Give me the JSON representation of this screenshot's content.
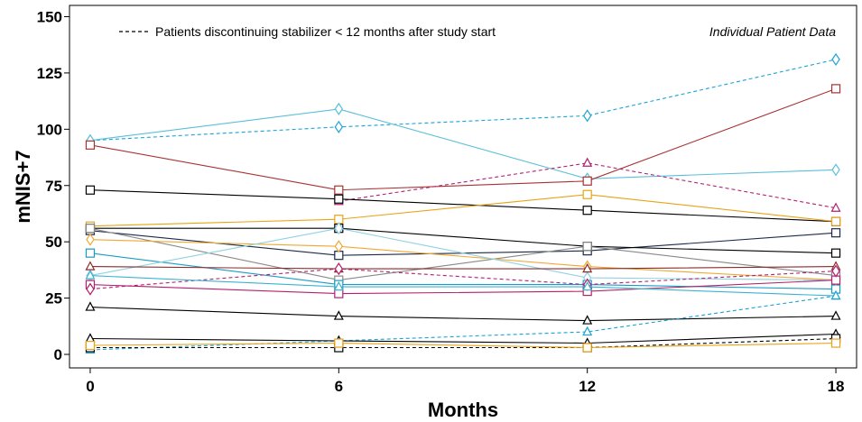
{
  "chart_data": {
    "type": "line",
    "xlabel": "Months",
    "ylabel": "mNIS+7",
    "x_ticks": [
      0,
      6,
      12,
      18
    ],
    "y_ticks": [
      0,
      25,
      50,
      75,
      100,
      125,
      150
    ],
    "xlim": [
      -0.5,
      18.5
    ],
    "ylim": [
      -6,
      155
    ],
    "grid": false,
    "legend_label": "Patients discontinuing stabilizer < 12 months after study start",
    "legend_position": "top-left",
    "annotation": "Individual Patient Data",
    "annotation_position": "top-right",
    "series": [
      {
        "color": "#1aa3d6",
        "marker": "diamond",
        "dashed": true,
        "x": [
          0,
          6,
          12,
          18
        ],
        "y": [
          95,
          101,
          106,
          131
        ]
      },
      {
        "color": "#5bbfd9",
        "marker": "diamond",
        "dashed": false,
        "x": [
          0,
          6,
          12,
          18
        ],
        "y": [
          95,
          109,
          78,
          82
        ]
      },
      {
        "color": "#a83232",
        "marker": "square",
        "dashed": false,
        "x": [
          0,
          6,
          12,
          18
        ],
        "y": [
          93,
          73,
          77,
          118
        ]
      },
      {
        "color": "#b3206e",
        "marker": "triangle",
        "dashed": true,
        "x": [
          6,
          12,
          18
        ],
        "y": [
          68,
          85,
          65
        ]
      },
      {
        "color": "#000000",
        "marker": "square",
        "dashed": false,
        "x": [
          0,
          6,
          12,
          18
        ],
        "y": [
          73,
          69,
          64,
          59
        ]
      },
      {
        "color": "#e8a317",
        "marker": "square",
        "dashed": false,
        "x": [
          0,
          6,
          12,
          18
        ],
        "y": [
          57,
          60,
          71,
          59
        ]
      },
      {
        "color": "#1b2a4a",
        "marker": "square",
        "dashed": false,
        "x": [
          0,
          6,
          12,
          18
        ],
        "y": [
          55,
          44,
          46,
          54
        ]
      },
      {
        "color": "#000000",
        "marker": "square",
        "dashed": false,
        "x": [
          0,
          6,
          12,
          18
        ],
        "y": [
          56,
          56,
          48,
          45
        ]
      },
      {
        "color": "#888888",
        "marker": "square",
        "dashed": false,
        "x": [
          0,
          6,
          12,
          18
        ],
        "y": [
          56,
          33,
          48,
          35
        ]
      },
      {
        "color": "#f0a830",
        "marker": "diamond",
        "dashed": false,
        "x": [
          0,
          6,
          12,
          18
        ],
        "y": [
          51,
          48,
          39,
          33
        ]
      },
      {
        "color": "#1a9bc4",
        "marker": "square",
        "dashed": false,
        "x": [
          0,
          6,
          12,
          18
        ],
        "y": [
          45,
          31,
          31,
          29
        ]
      },
      {
        "color": "#8fd1e3",
        "marker": "diamond",
        "dashed": false,
        "x": [
          0,
          6,
          12,
          18
        ],
        "y": [
          35,
          56,
          34,
          33
        ]
      },
      {
        "color": "#8b2a2a",
        "marker": "triangle",
        "dashed": false,
        "x": [
          0,
          6,
          12,
          18
        ],
        "y": [
          39,
          38,
          38,
          39
        ]
      },
      {
        "color": "#b3206e",
        "marker": "square",
        "dashed": false,
        "x": [
          0,
          6,
          12,
          18
        ],
        "y": [
          31,
          27,
          28,
          33
        ]
      },
      {
        "color": "#b3206e",
        "marker": "diamond",
        "dashed": true,
        "x": [
          0,
          6,
          12,
          18
        ],
        "y": [
          29,
          38,
          31,
          37
        ]
      },
      {
        "color": "#3bb3d0",
        "marker": "triangle",
        "dashed": false,
        "x": [
          0,
          6,
          12,
          18
        ],
        "y": [
          35,
          30,
          30,
          26
        ]
      },
      {
        "color": "#000000",
        "marker": "triangle",
        "dashed": false,
        "x": [
          0,
          6,
          12,
          18
        ],
        "y": [
          21,
          17,
          15,
          17
        ]
      },
      {
        "color": "#1aa3d6",
        "marker": "triangle",
        "dashed": true,
        "x": [
          0,
          6,
          12,
          18
        ],
        "y": [
          2,
          6,
          10,
          26
        ]
      },
      {
        "color": "#000000",
        "marker": "triangle",
        "dashed": false,
        "x": [
          0,
          6,
          12,
          18
        ],
        "y": [
          7,
          6,
          5,
          9
        ]
      },
      {
        "color": "#000000",
        "marker": "square",
        "dashed": true,
        "x": [
          0,
          6,
          12,
          18
        ],
        "y": [
          3,
          3,
          3,
          7
        ]
      },
      {
        "color": "#e8a317",
        "marker": "square",
        "dashed": false,
        "x": [
          0,
          6,
          12,
          18
        ],
        "y": [
          4,
          5,
          3,
          5
        ]
      }
    ]
  }
}
